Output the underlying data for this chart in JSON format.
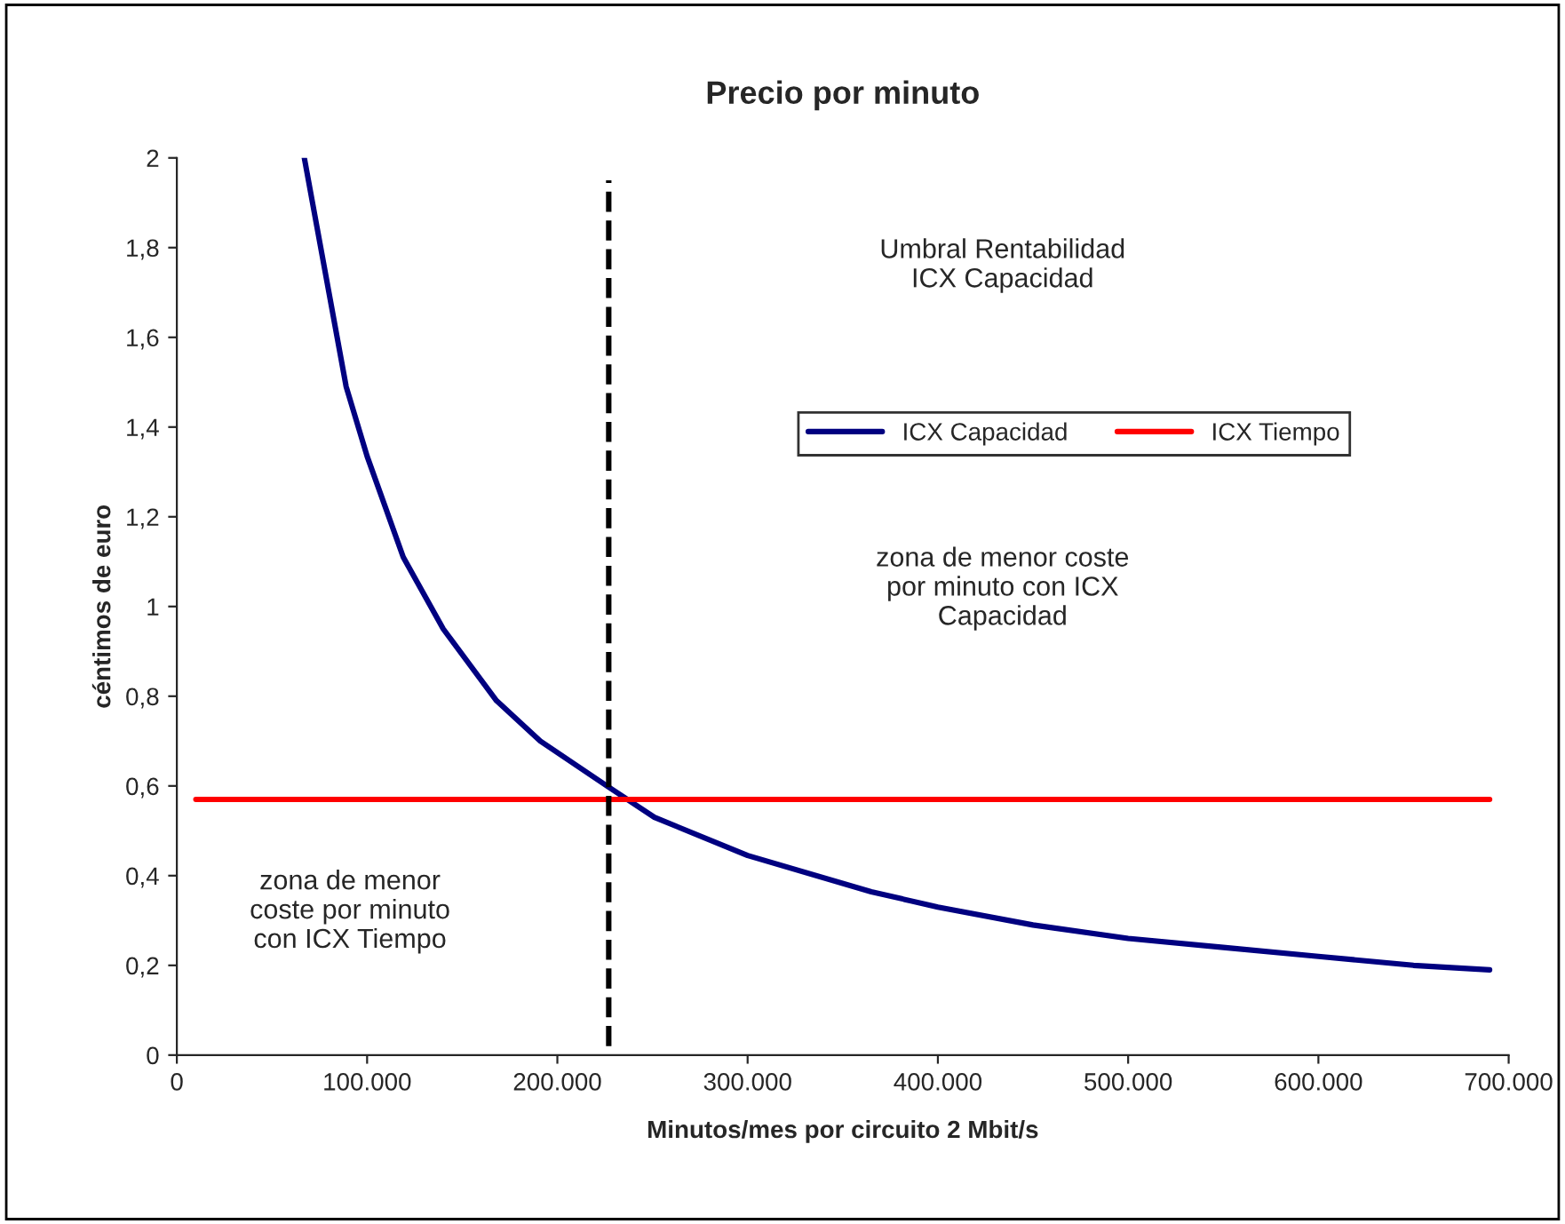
{
  "chart_data": {
    "type": "line",
    "title": "Precio por minuto",
    "xlabel": "Minutos/mes por circuito 2 Mbit/s",
    "ylabel": "céntimos de euro",
    "series": [
      {
        "name": "ICX Capacidad",
        "color": "#000080",
        "x": [
          67000,
          89000,
          100000,
          119000,
          140000,
          168000,
          191000,
          226000,
          251000,
          300000,
          365000,
          400000,
          450000,
          500000,
          550000,
          600000,
          650000,
          690000
        ],
        "values": [
          2.0,
          1.49,
          1.335,
          1.11,
          0.95,
          0.79,
          0.7,
          0.6,
          0.53,
          0.445,
          0.364,
          0.33,
          0.29,
          0.26,
          0.24,
          0.22,
          0.2,
          0.19
        ]
      },
      {
        "name": "ICX Tiempo",
        "color": "#ff0000",
        "x": [
          10000,
          690000
        ],
        "values": [
          0.57,
          0.57
        ]
      },
      {
        "color": "#000000",
        "line_style": "dashed",
        "x": [
          227000,
          227000
        ],
        "values": [
          0.02,
          1.95
        ]
      }
    ],
    "xlim": [
      0,
      700000
    ],
    "ylim": [
      0,
      2
    ],
    "xticks": [
      {
        "value": 0,
        "label": "0"
      },
      {
        "value": 100000,
        "label": "100.000"
      },
      {
        "value": 200000,
        "label": "200.000"
      },
      {
        "value": 300000,
        "label": "300.000"
      },
      {
        "value": 400000,
        "label": "400.000"
      },
      {
        "value": 500000,
        "label": "500.000"
      },
      {
        "value": 600000,
        "label": "600.000"
      },
      {
        "value": 700000,
        "label": "700.000"
      }
    ],
    "yticks": [
      0,
      {
        "value": 0.2,
        "label": "0,2"
      },
      {
        "value": 0.4,
        "label": "0,4"
      },
      {
        "value": 0.6,
        "label": "0,6"
      },
      {
        "value": 0.8,
        "label": "0,8"
      },
      1,
      {
        "value": 1.2,
        "label": "1,2"
      },
      {
        "value": 1.4,
        "label": "1,4"
      },
      {
        "value": 1.6,
        "label": "1,6"
      },
      {
        "value": 1.8,
        "label": "1,8"
      },
      2
    ],
    "annotations": [
      "Umbral Rentabilidad\nICX Capacidad",
      "zona de menor coste\npor minuto con ICX\nCapacidad",
      "zona de menor\ncoste por minuto\ncon ICX Tiempo"
    ],
    "legend": "top right",
    "grid": false,
    "marker": "none",
    "line_style": "solid"
  }
}
